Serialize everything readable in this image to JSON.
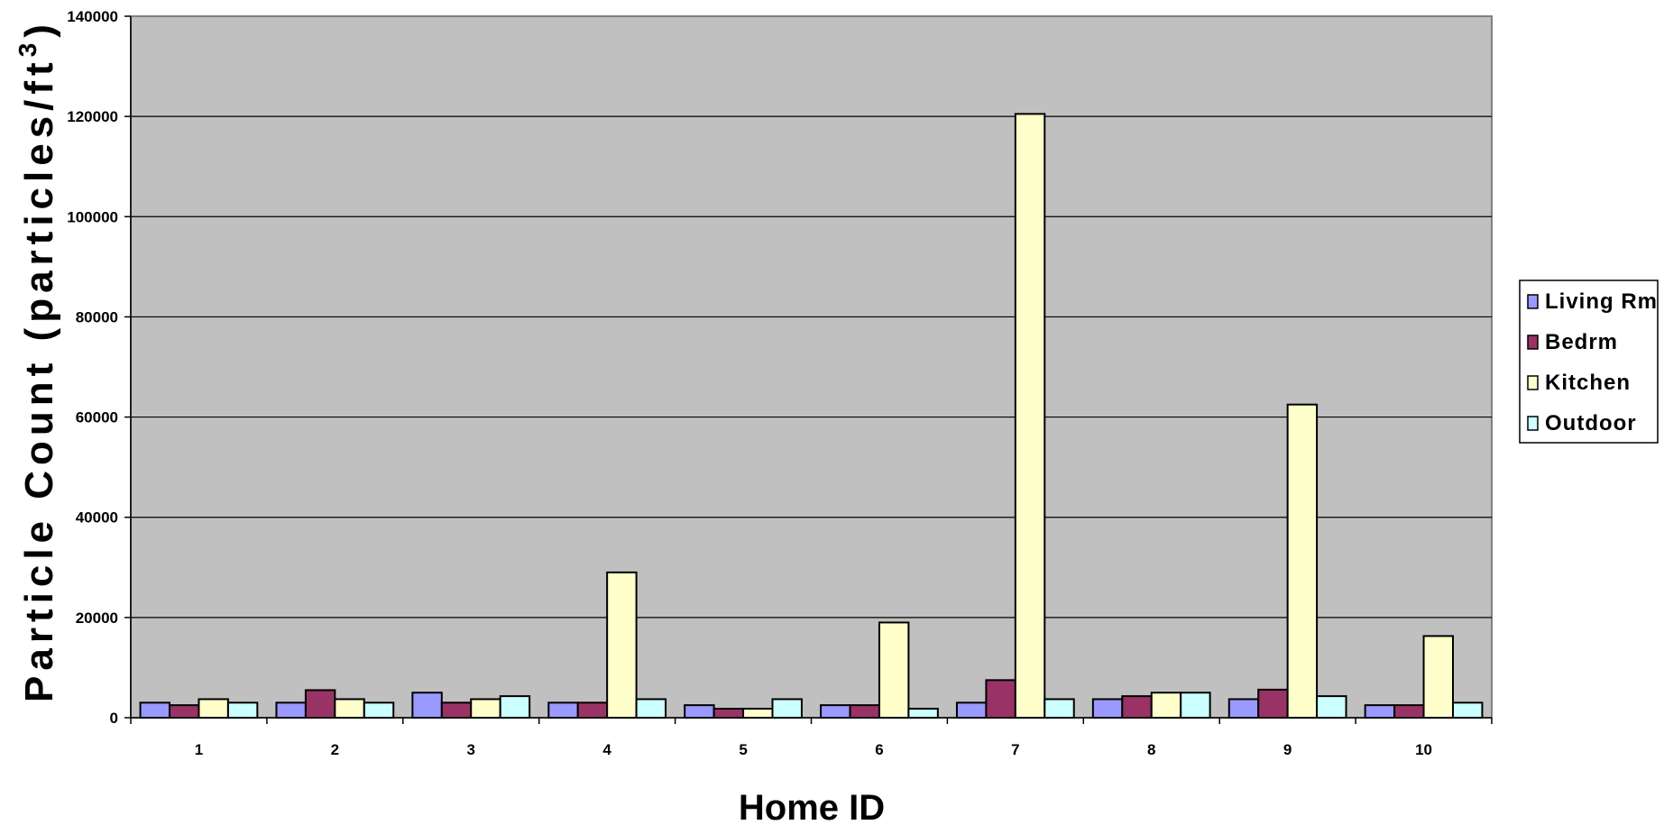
{
  "chart_data": {
    "type": "bar",
    "title": "",
    "xlabel": "Home ID",
    "ylabel": "Particle Count (particles/ft",
    "ylabel_superscript": "3",
    "ylabel_suffix": ")",
    "ylim": [
      0,
      140000
    ],
    "yticks": [
      "0",
      "20000",
      "40000",
      "60000",
      "80000",
      "100000",
      "120000",
      "140000"
    ],
    "categories": [
      "1",
      "2",
      "3",
      "4",
      "5",
      "6",
      "7",
      "8",
      "9",
      "10"
    ],
    "grid": true,
    "legend_position": "right",
    "series": [
      {
        "name": "Living Rm",
        "color": "#9999ff",
        "values": [
          3000,
          3000,
          5000,
          3000,
          2500,
          2500,
          3000,
          3700,
          3700,
          2500
        ]
      },
      {
        "name": "Bedrm",
        "color": "#993366",
        "values": [
          2500,
          5500,
          3000,
          3000,
          1800,
          2500,
          7500,
          4300,
          5600,
          2500
        ]
      },
      {
        "name": "Kitchen",
        "color": "#ffffcc",
        "values": [
          3700,
          3700,
          3700,
          29000,
          1800,
          19000,
          120500,
          5000,
          62500,
          16300
        ]
      },
      {
        "name": "Outdoor",
        "color": "#ccffff",
        "values": [
          3000,
          3000,
          4300,
          3700,
          3700,
          1800,
          3700,
          5000,
          4300,
          3000
        ]
      }
    ],
    "plot_background": "#c0c0c0"
  }
}
